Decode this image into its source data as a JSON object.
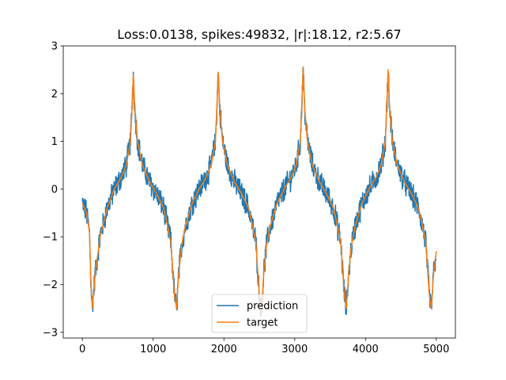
{
  "chart_data": {
    "type": "line",
    "title": "Loss:0.0138, spikes:49832, |r|:18.12, r2:5.67",
    "xlabel": "",
    "ylabel": "",
    "xlim": [
      -270,
      5270
    ],
    "ylim": [
      -3.12,
      3.0
    ],
    "x_ticks": [
      0,
      1000,
      2000,
      3000,
      4000,
      5000
    ],
    "x_tick_labels": [
      "0",
      "1000",
      "2000",
      "3000",
      "4000",
      "5000"
    ],
    "y_ticks": [
      -3,
      -2,
      -1,
      0,
      1,
      2,
      3
    ],
    "y_tick_labels": [
      "−3",
      "−2",
      "−1",
      "0",
      "1",
      "2",
      "3"
    ],
    "grid": false,
    "legend": {
      "position": "lower-center",
      "entries": [
        "prediction",
        "target"
      ]
    },
    "series": [
      {
        "name": "prediction",
        "color": "#1f77b4",
        "kind": "noisy-periodic"
      },
      {
        "name": "target",
        "color": "#ff7f0e",
        "kind": "periodic"
      }
    ],
    "x": [
      0,
      60,
      100,
      120,
      140,
      180,
      250,
      350,
      450,
      550,
      620,
      680,
      720,
      740,
      780,
      850,
      950,
      1050,
      1150,
      1250,
      1300,
      1330,
      1360,
      1400,
      1450,
      1550,
      1650,
      1750,
      1820,
      1880,
      1920,
      1940,
      1980,
      2050,
      2150,
      2250,
      2350,
      2450,
      2500,
      2530,
      2560,
      2600,
      2650,
      2750,
      2850,
      2950,
      3020,
      3080,
      3120,
      3140,
      3180,
      3250,
      3350,
      3450,
      3550,
      3650,
      3700,
      3730,
      3760,
      3800,
      3850,
      3950,
      4050,
      4150,
      4220,
      4280,
      4320,
      4340,
      4380,
      4450,
      4550,
      4650,
      4750,
      4850,
      4900,
      4930,
      4960,
      5000
    ],
    "target_values": [
      -0.3,
      -0.5,
      -0.9,
      -1.9,
      -2.5,
      -1.8,
      -1.0,
      -0.4,
      0.0,
      0.25,
      0.5,
      1.0,
      2.4,
      1.7,
      1.0,
      0.5,
      0.15,
      -0.1,
      -0.4,
      -1.1,
      -2.2,
      -2.5,
      -1.8,
      -1.2,
      -0.8,
      -0.3,
      0.0,
      0.25,
      0.5,
      1.0,
      2.45,
      1.7,
      1.0,
      0.5,
      0.15,
      -0.1,
      -0.4,
      -1.1,
      -2.2,
      -2.6,
      -1.8,
      -1.2,
      -0.8,
      -0.3,
      0.0,
      0.25,
      0.5,
      1.0,
      2.55,
      1.7,
      1.0,
      0.5,
      0.15,
      -0.1,
      -0.4,
      -1.1,
      -2.2,
      -2.5,
      -1.8,
      -1.2,
      -0.8,
      -0.3,
      0.0,
      0.25,
      0.5,
      1.0,
      2.5,
      1.7,
      1.0,
      0.5,
      0.15,
      -0.1,
      -0.4,
      -1.1,
      -2.2,
      -2.5,
      -1.8,
      -1.3
    ],
    "noise_amplitude": 0.22
  }
}
